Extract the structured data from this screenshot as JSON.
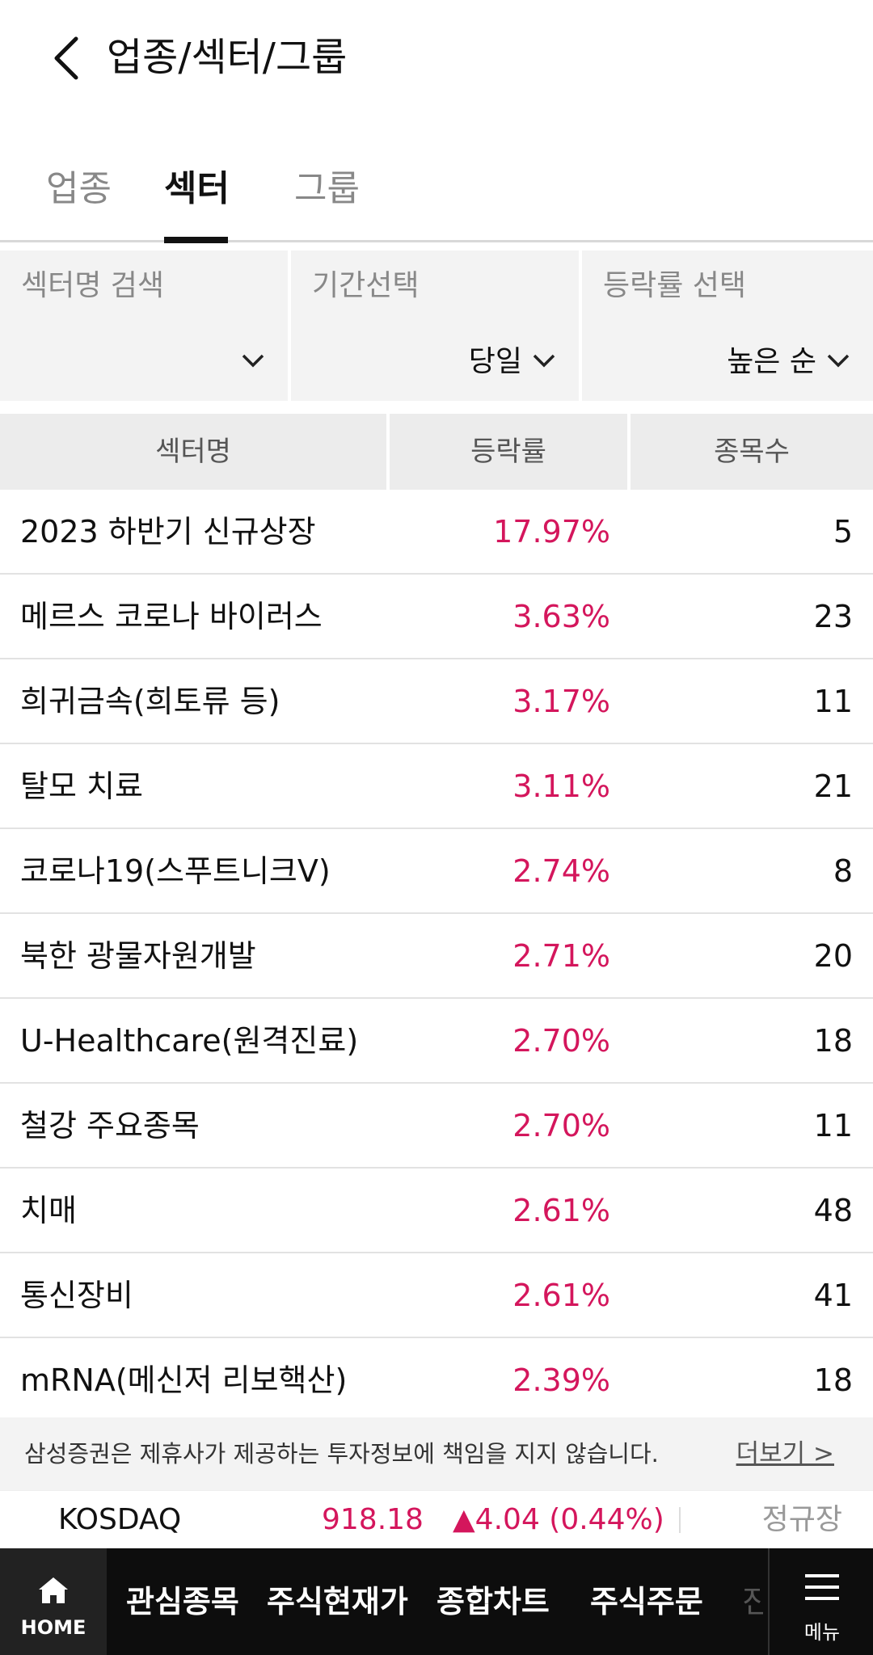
{
  "header": {
    "title": "업종/섹터/그룹",
    "back_icon": "chevron-left-icon"
  },
  "tabs": [
    {
      "label": "업종",
      "active": false
    },
    {
      "label": "섹터",
      "active": true
    },
    {
      "label": "그룹",
      "active": false
    }
  ],
  "filters": {
    "search": {
      "label": "섹터명 검색",
      "value": ""
    },
    "period": {
      "label": "기간선택",
      "value": "당일"
    },
    "rate": {
      "label": "등락률 선택",
      "value": "높은 순"
    }
  },
  "table": {
    "headers": [
      "섹터명",
      "등락률",
      "종목수"
    ],
    "rows": [
      {
        "name": "2023 하반기 신규상장",
        "rate": "17.97%",
        "count": "5"
      },
      {
        "name": "메르스 코로나 바이러스",
        "rate": "3.63%",
        "count": "23"
      },
      {
        "name": "희귀금속(희토류 등)",
        "rate": "3.17%",
        "count": "11"
      },
      {
        "name": "탈모 치료",
        "rate": "3.11%",
        "count": "21"
      },
      {
        "name": "코로나19(스푸트니크V)",
        "rate": "2.74%",
        "count": "8"
      },
      {
        "name": "북한 광물자원개발",
        "rate": "2.71%",
        "count": "20"
      },
      {
        "name": "U-Healthcare(원격진료)",
        "rate": "2.70%",
        "count": "18"
      },
      {
        "name": "철강 주요종목",
        "rate": "2.70%",
        "count": "11"
      },
      {
        "name": "치매",
        "rate": "2.61%",
        "count": "48"
      },
      {
        "name": "통신장비",
        "rate": "2.61%",
        "count": "41"
      },
      {
        "name": "mRNA(메신저 리보핵산)",
        "rate": "2.39%",
        "count": "18"
      }
    ]
  },
  "disclaimer": {
    "text": "삼성증권은 제휴사가 제공하는 투자정보에 책임을 지지 않습니다.",
    "more": "더보기 >"
  },
  "ticker": {
    "name": "KOSDAQ",
    "value": "918.18",
    "change": "▲4.04 (0.44%)",
    "status": "정규장"
  },
  "bottom_nav": {
    "home": "HOME",
    "items": [
      "관심종목",
      "주식현재가",
      "종합차트",
      "주식주문"
    ],
    "partial": "진",
    "menu": "메뉴"
  },
  "colors": {
    "up": "#d4165c",
    "nav_bg": "#0d0d0d"
  }
}
